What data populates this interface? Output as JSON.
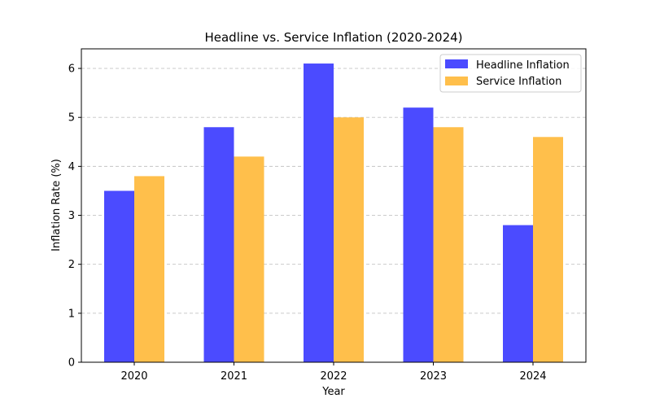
{
  "chart_data": {
    "type": "bar",
    "title": "Headline vs. Service Inflation (2020-2024)",
    "xlabel": "Year",
    "ylabel": "Inflation Rate (%)",
    "categories": [
      "2020",
      "2021",
      "2022",
      "2023",
      "2024"
    ],
    "series": [
      {
        "name": "Headline Inflation",
        "values": [
          3.5,
          4.8,
          6.1,
          5.2,
          2.8
        ],
        "color": "#4b4bff"
      },
      {
        "name": "Service Inflation",
        "values": [
          3.8,
          4.2,
          5.0,
          4.8,
          4.6
        ],
        "color": "#ffbf4b"
      }
    ],
    "ylim": [
      0,
      6.4
    ],
    "yticks": [
      "0",
      "1",
      "2",
      "3",
      "4",
      "5",
      "6"
    ],
    "grid": "y-dashed",
    "legend_position": "top-right"
  }
}
